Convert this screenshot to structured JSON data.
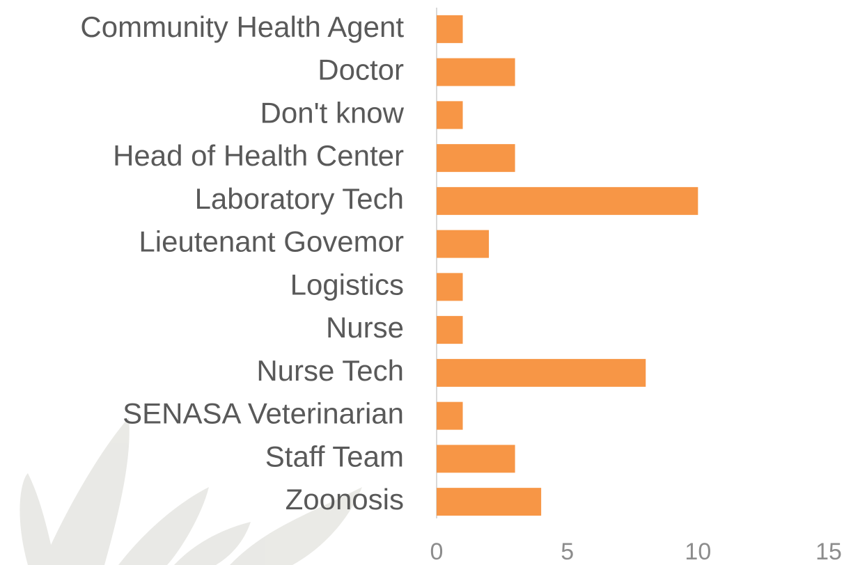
{
  "chart_data": {
    "type": "bar",
    "orientation": "horizontal",
    "categories": [
      "Community Health Agent",
      "Doctor",
      "Don't know",
      "Head of Health Center",
      "Laboratory Tech",
      "Lieutenant Govemor",
      "Logistics",
      "Nurse",
      "Nurse Tech",
      "SENASA Veterinarian",
      "Staff Team",
      "Zoonosis"
    ],
    "values": [
      1,
      3,
      1,
      3,
      10,
      2,
      1,
      1,
      8,
      1,
      3,
      4
    ],
    "color": "#f79646",
    "xlim": [
      0,
      15
    ],
    "xticks": [
      0,
      5,
      10,
      15
    ]
  }
}
